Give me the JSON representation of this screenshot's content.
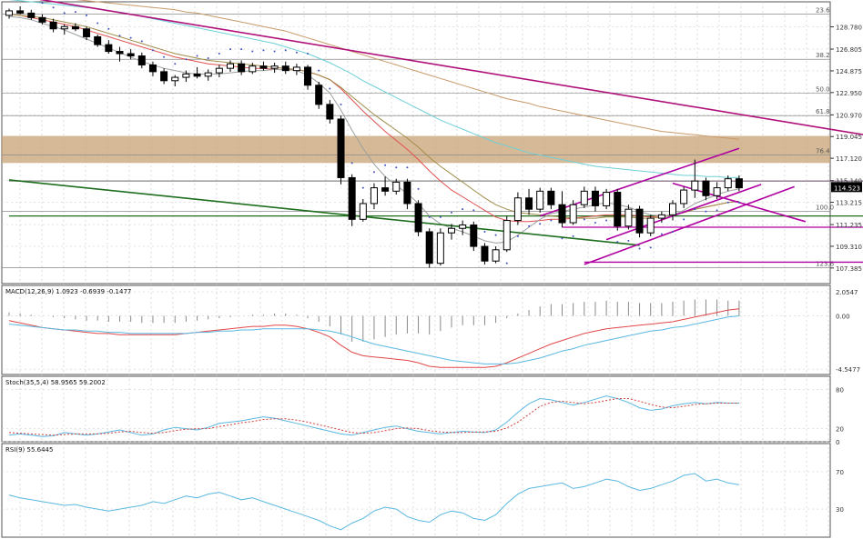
{
  "chart_data": {
    "type": "candlestick",
    "price": {
      "ylim": [
        106.0,
        131.0
      ],
      "ticks": [
        "128.780",
        "126.805",
        "124.875",
        "122.950",
        "120.970",
        "119.045",
        "117.120",
        "115.140",
        "113.215",
        "111.235",
        "109.310",
        "107.385"
      ],
      "last_price_label": "114.523",
      "last_price": 114.523,
      "fib_levels": [
        {
          "label": "23.6",
          "value": 129.9
        },
        {
          "label": "38.2",
          "value": 125.9
        },
        {
          "label": "50.0",
          "value": 122.9
        },
        {
          "label": "61.8",
          "value": 120.9
        },
        {
          "label": "76.4",
          "value": 117.4
        },
        {
          "label": "100.0",
          "value": 112.4
        },
        {
          "label": "123.6",
          "value": 107.4
        }
      ],
      "resistance_zone": [
        116.7,
        119.1
      ],
      "horizontal_lines": [
        {
          "value": 115.1,
          "color": "#b000a0",
          "from": 58,
          "to": 104
        },
        {
          "value": 111.0,
          "color": "#b000a0",
          "from": 50,
          "to": 104
        },
        {
          "value": 107.9,
          "color": "#b000a0",
          "from": 52,
          "to": 110
        },
        {
          "value": 115.1,
          "color": "#888888",
          "from": 0,
          "to": 110
        },
        {
          "value": 112.0,
          "color": "#1e6e1e",
          "from": 0,
          "to": 104
        }
      ],
      "candles": [
        [
          129.8,
          130.4,
          129.5,
          130.2
        ],
        [
          130.2,
          130.6,
          129.9,
          130.0
        ],
        [
          130.0,
          130.3,
          129.4,
          129.6
        ],
        [
          129.6,
          129.9,
          129.0,
          129.2
        ],
        [
          129.2,
          129.5,
          128.3,
          128.6
        ],
        [
          128.6,
          129.0,
          128.1,
          128.8
        ],
        [
          128.8,
          129.1,
          128.4,
          128.6
        ],
        [
          128.6,
          128.8,
          127.6,
          127.9
        ],
        [
          127.9,
          128.1,
          127.0,
          127.2
        ],
        [
          127.2,
          127.6,
          126.4,
          126.6
        ],
        [
          126.6,
          127.0,
          125.7,
          126.4
        ],
        [
          126.4,
          126.8,
          125.9,
          126.2
        ],
        [
          126.2,
          126.5,
          125.1,
          125.4
        ],
        [
          125.4,
          125.7,
          124.4,
          124.8
        ],
        [
          124.8,
          125.1,
          123.7,
          124.0
        ],
        [
          124.0,
          124.5,
          123.5,
          124.3
        ],
        [
          124.3,
          124.9,
          123.9,
          124.6
        ],
        [
          124.6,
          125.2,
          124.2,
          124.4
        ],
        [
          124.4,
          125.0,
          124.0,
          124.7
        ],
        [
          124.7,
          125.4,
          124.3,
          125.1
        ],
        [
          125.1,
          125.8,
          124.8,
          125.5
        ],
        [
          125.5,
          125.8,
          124.5,
          124.8
        ],
        [
          124.8,
          125.6,
          124.6,
          125.3
        ],
        [
          125.3,
          125.7,
          124.9,
          125.1
        ],
        [
          125.1,
          125.6,
          124.7,
          125.3
        ],
        [
          125.3,
          125.7,
          124.6,
          124.9
        ],
        [
          124.9,
          125.5,
          124.5,
          125.2
        ],
        [
          125.2,
          125.4,
          123.2,
          123.6
        ],
        [
          123.6,
          123.9,
          121.5,
          121.9
        ],
        [
          121.9,
          122.3,
          120.2,
          120.6
        ],
        [
          120.6,
          120.9,
          114.8,
          115.4
        ],
        [
          115.4,
          115.7,
          111.1,
          111.7
        ],
        [
          111.7,
          113.5,
          111.5,
          113.1
        ],
        [
          113.1,
          114.9,
          112.6,
          114.5
        ],
        [
          114.5,
          115.5,
          113.8,
          114.2
        ],
        [
          114.2,
          115.3,
          113.9,
          115.0
        ],
        [
          115.0,
          115.3,
          112.6,
          113.1
        ],
        [
          113.1,
          113.4,
          110.2,
          110.6
        ],
        [
          110.6,
          110.9,
          107.4,
          107.8
        ],
        [
          107.8,
          110.9,
          107.6,
          110.5
        ],
        [
          110.5,
          111.3,
          109.9,
          110.9
        ],
        [
          110.9,
          111.6,
          110.3,
          111.2
        ],
        [
          111.2,
          111.5,
          108.9,
          109.3
        ],
        [
          109.3,
          109.6,
          107.7,
          108.0
        ],
        [
          108.0,
          109.3,
          107.8,
          109.0
        ],
        [
          109.0,
          112.0,
          108.8,
          111.6
        ],
        [
          111.6,
          114.1,
          111.2,
          113.6
        ],
        [
          113.6,
          114.4,
          112.1,
          112.6
        ],
        [
          112.6,
          114.5,
          112.3,
          114.2
        ],
        [
          114.2,
          114.5,
          112.6,
          113.0
        ],
        [
          113.0,
          114.2,
          111.0,
          111.4
        ],
        [
          111.4,
          113.4,
          111.2,
          113.0
        ],
        [
          113.0,
          114.6,
          112.7,
          114.2
        ],
        [
          114.2,
          114.6,
          112.4,
          112.9
        ],
        [
          112.9,
          114.4,
          112.6,
          114.1
        ],
        [
          114.1,
          114.4,
          110.7,
          111.1
        ],
        [
          111.1,
          113.0,
          110.8,
          112.6
        ],
        [
          112.6,
          112.9,
          110.1,
          110.5
        ],
        [
          110.5,
          112.1,
          110.2,
          111.8
        ],
        [
          111.8,
          112.4,
          111.4,
          112.1
        ],
        [
          112.1,
          113.4,
          111.6,
          113.1
        ],
        [
          113.1,
          114.6,
          112.7,
          114.3
        ],
        [
          114.3,
          117.0,
          113.6,
          115.1
        ],
        [
          115.1,
          115.4,
          113.4,
          113.8
        ],
        [
          113.8,
          115.0,
          113.5,
          114.5
        ],
        [
          114.5,
          115.6,
          114.2,
          115.3
        ],
        [
          115.3,
          115.6,
          114.2,
          114.5
        ]
      ],
      "sma_fast": [
        129.7,
        129.6,
        129.4,
        129.1,
        128.8,
        128.5,
        128.1,
        127.7,
        127.3,
        126.9,
        126.5,
        126.1,
        125.7,
        125.4,
        125.1,
        124.9,
        124.7,
        124.6,
        124.6,
        124.6,
        124.7,
        124.8,
        124.9,
        124.9,
        125.0,
        125.0,
        124.9,
        124.5,
        123.8,
        122.9,
        121.4,
        119.6,
        118.0,
        116.6,
        115.5,
        114.7,
        114.0,
        113.1,
        112.0,
        111.3,
        110.9,
        110.6,
        110.2,
        109.8,
        109.6,
        109.7,
        110.3,
        111.0,
        111.7,
        112.2,
        112.4,
        112.6,
        112.8,
        113.0,
        113.2,
        113.0,
        112.8,
        112.4,
        112.1,
        112.0,
        112.1,
        112.5,
        113.1,
        113.5,
        113.9,
        114.2,
        114.4
      ],
      "sma_mid": [
        129.9,
        129.8,
        129.7,
        129.6,
        129.4,
        129.2,
        129.0,
        128.8,
        128.5,
        128.2,
        127.9,
        127.6,
        127.3,
        127.0,
        126.7,
        126.4,
        126.2,
        126.0,
        125.8,
        125.7,
        125.6,
        125.5,
        125.4,
        125.3,
        125.2,
        125.1,
        125.0,
        124.8,
        124.5,
        124.1,
        123.4,
        122.6,
        121.8,
        121.0,
        120.3,
        119.6,
        118.9,
        118.1,
        117.2,
        116.4,
        115.7,
        115.0,
        114.3,
        113.6,
        113.0,
        112.6,
        112.3,
        112.2,
        112.1,
        112.0,
        111.9,
        111.8,
        111.8,
        111.8,
        111.9,
        111.9,
        111.9,
        111.8,
        111.8,
        111.9,
        112.1,
        112.3,
        112.6,
        112.8,
        113.0,
        113.2,
        113.3
      ],
      "sma_cyan": [
        131.2,
        131.1,
        131.0,
        130.9,
        130.8,
        130.7,
        130.6,
        130.5,
        130.4,
        130.2,
        130.1,
        129.9,
        129.7,
        129.5,
        129.3,
        129.1,
        128.9,
        128.7,
        128.5,
        128.3,
        128.1,
        127.9,
        127.7,
        127.5,
        127.3,
        127.0,
        126.7,
        126.4,
        126.0,
        125.6,
        125.1,
        124.6,
        124.0,
        123.5,
        123.0,
        122.5,
        122.0,
        121.5,
        121.0,
        120.5,
        120.1,
        119.7,
        119.3,
        118.9,
        118.5,
        118.2,
        117.9,
        117.6,
        117.4,
        117.2,
        117.0,
        116.8,
        116.6,
        116.4,
        116.3,
        116.2,
        116.1,
        116.0,
        115.9,
        115.8,
        115.7,
        115.6,
        115.6,
        115.5,
        115.5,
        115.4,
        115.4
      ],
      "sma_tan": [
        131.6,
        131.5,
        131.5,
        131.4,
        131.4,
        131.3,
        131.2,
        131.1,
        131.0,
        130.9,
        130.8,
        130.7,
        130.6,
        130.5,
        130.4,
        130.3,
        130.1,
        130.0,
        129.8,
        129.6,
        129.4,
        129.2,
        129.0,
        128.8,
        128.6,
        128.4,
        128.1,
        127.8,
        127.5,
        127.2,
        126.9,
        126.6,
        126.3,
        126.0,
        125.7,
        125.4,
        125.1,
        124.8,
        124.5,
        124.2,
        123.9,
        123.6,
        123.3,
        123.0,
        122.7,
        122.4,
        122.2,
        122.0,
        121.7,
        121.5,
        121.3,
        121.1,
        120.9,
        120.7,
        120.5,
        120.3,
        120.1,
        119.9,
        119.7,
        119.5,
        119.4,
        119.3,
        119.2,
        119.1,
        119.0,
        118.9,
        118.8
      ],
      "sma_red": [
        129.9,
        129.8,
        129.6,
        129.4,
        129.2,
        129.0,
        128.8,
        128.5,
        128.2,
        127.9,
        127.6,
        127.3,
        127.0,
        126.7,
        126.4,
        126.1,
        125.9,
        125.7,
        125.5,
        125.4,
        125.3,
        125.2,
        125.1,
        125.1,
        125.0,
        125.0,
        125.0,
        124.8,
        124.5,
        124.1,
        123.3,
        122.3,
        121.3,
        120.4,
        119.5,
        118.7,
        117.9,
        117.0,
        116.0,
        115.1,
        114.3,
        113.7,
        113.1,
        112.5,
        111.9,
        111.6,
        111.5,
        111.5,
        111.6,
        111.7,
        111.7,
        111.8,
        111.9,
        112.0,
        112.1,
        112.1,
        112.1,
        112.0,
        111.9,
        112.0,
        112.1,
        112.3,
        112.6,
        112.8,
        113.0,
        113.2,
        113.3
      ],
      "trendlines": [
        {
          "color": "#b0107a",
          "p1": [
            1,
            131.5
          ],
          "p2": [
            104,
            114.9
          ]
        },
        {
          "color": "#1e6e1e",
          "p1": [
            0,
            115.2
          ],
          "p2": [
            57,
            109.4
          ]
        },
        {
          "color": "#b000a0",
          "p1": [
            48,
            112.0
          ],
          "p2": [
            66,
            118.0
          ]
        },
        {
          "color": "#b000a0",
          "p1": [
            52,
            107.7
          ],
          "p2": [
            71,
            114.6
          ]
        },
        {
          "color": "#b000a0",
          "p1": [
            54,
            109.9
          ],
          "p2": [
            68,
            114.8
          ]
        },
        {
          "color": "#b000a0",
          "p1": [
            60,
            114.9
          ],
          "p2": [
            72,
            111.5
          ]
        }
      ]
    },
    "macd": {
      "label": "MACD(12,26,9) 1.0923 -0.6939 -0.1477",
      "ticks": [
        "2.0547",
        "0.00",
        "-4.5477"
      ],
      "ylim": [
        -5.0,
        2.6
      ],
      "hist": [
        0.3,
        0.2,
        0.1,
        0.0,
        -0.1,
        -0.2,
        -0.3,
        -0.4,
        -0.4,
        -0.5,
        -0.5,
        -0.5,
        -0.6,
        -0.6,
        -0.6,
        -0.6,
        -0.5,
        -0.4,
        -0.3,
        -0.2,
        -0.1,
        0.0,
        0.1,
        0.1,
        0.2,
        0.2,
        0.1,
        -0.2,
        -0.5,
        -0.9,
        -1.6,
        -2.2,
        -2.2,
        -2.0,
        -1.8,
        -1.6,
        -1.5,
        -1.5,
        -1.6,
        -1.3,
        -1.0,
        -0.8,
        -0.8,
        -0.8,
        -0.6,
        -0.2,
        0.2,
        0.5,
        0.8,
        1.0,
        1.0,
        1.1,
        1.2,
        1.2,
        1.3,
        1.2,
        1.2,
        1.1,
        1.1,
        1.1,
        1.2,
        1.3,
        1.4,
        1.4,
        1.4,
        1.3,
        1.3
      ],
      "macd": [
        -0.4,
        -0.6,
        -0.8,
        -1.0,
        -1.1,
        -1.2,
        -1.3,
        -1.4,
        -1.5,
        -1.5,
        -1.6,
        -1.6,
        -1.6,
        -1.6,
        -1.6,
        -1.6,
        -1.5,
        -1.4,
        -1.3,
        -1.2,
        -1.1,
        -1.0,
        -0.9,
        -0.9,
        -0.8,
        -0.8,
        -0.9,
        -1.1,
        -1.4,
        -1.8,
        -2.5,
        -3.1,
        -3.4,
        -3.5,
        -3.6,
        -3.7,
        -3.8,
        -4.0,
        -4.3,
        -4.4,
        -4.4,
        -4.4,
        -4.4,
        -4.4,
        -4.3,
        -4.0,
        -3.6,
        -3.2,
        -2.8,
        -2.4,
        -2.1,
        -1.8,
        -1.5,
        -1.3,
        -1.1,
        -1.0,
        -0.9,
        -0.8,
        -0.7,
        -0.6,
        -0.5,
        -0.3,
        -0.1,
        0.1,
        0.3,
        0.5,
        0.6
      ],
      "signal": [
        -0.7,
        -0.8,
        -0.9,
        -1.0,
        -1.1,
        -1.2,
        -1.2,
        -1.3,
        -1.3,
        -1.4,
        -1.4,
        -1.5,
        -1.5,
        -1.5,
        -1.5,
        -1.5,
        -1.5,
        -1.4,
        -1.4,
        -1.3,
        -1.3,
        -1.2,
        -1.2,
        -1.1,
        -1.1,
        -1.1,
        -1.1,
        -1.1,
        -1.2,
        -1.3,
        -1.5,
        -1.8,
        -2.1,
        -2.4,
        -2.6,
        -2.8,
        -3.0,
        -3.2,
        -3.4,
        -3.6,
        -3.8,
        -3.9,
        -4.0,
        -4.1,
        -4.1,
        -4.1,
        -4.0,
        -3.8,
        -3.6,
        -3.3,
        -3.0,
        -2.8,
        -2.5,
        -2.3,
        -2.1,
        -1.9,
        -1.7,
        -1.5,
        -1.3,
        -1.2,
        -1.0,
        -0.9,
        -0.7,
        -0.5,
        -0.3,
        -0.1,
        0.0
      ]
    },
    "stoch": {
      "label": "Stoch(35,5,4) 58.9565 59.2002",
      "ticks": [
        "80",
        "20",
        "0"
      ],
      "ylim": [
        0,
        100
      ],
      "k": [
        10,
        12,
        10,
        8,
        9,
        14,
        12,
        10,
        12,
        15,
        18,
        14,
        10,
        12,
        18,
        22,
        20,
        18,
        22,
        28,
        30,
        32,
        35,
        38,
        36,
        32,
        28,
        24,
        20,
        16,
        12,
        10,
        14,
        18,
        22,
        24,
        20,
        16,
        14,
        12,
        14,
        16,
        15,
        14,
        18,
        30,
        45,
        58,
        66,
        64,
        60,
        56,
        60,
        65,
        70,
        66,
        60,
        52,
        48,
        50,
        55,
        58,
        60,
        58,
        60,
        59,
        59
      ],
      "d": [
        14,
        13,
        12,
        11,
        10,
        11,
        12,
        12,
        12,
        13,
        15,
        16,
        14,
        13,
        14,
        17,
        19,
        20,
        20,
        23,
        26,
        29,
        31,
        34,
        35,
        35,
        33,
        30,
        26,
        22,
        18,
        14,
        13,
        14,
        17,
        20,
        21,
        20,
        17,
        15,
        14,
        14,
        15,
        15,
        16,
        21,
        30,
        42,
        54,
        60,
        62,
        60,
        58,
        60,
        63,
        66,
        66,
        62,
        57,
        53,
        52,
        54,
        57,
        58,
        59,
        59,
        59
      ]
    },
    "rsi": {
      "label": "RSI(9) 55.6445",
      "ticks": [
        "70",
        "30"
      ],
      "ylim": [
        0,
        100
      ],
      "values": [
        45,
        42,
        40,
        38,
        36,
        34,
        35,
        32,
        30,
        28,
        30,
        32,
        34,
        38,
        36,
        40,
        44,
        42,
        46,
        48,
        44,
        40,
        42,
        38,
        34,
        30,
        26,
        22,
        18,
        12,
        8,
        15,
        20,
        28,
        32,
        30,
        22,
        18,
        16,
        24,
        28,
        26,
        20,
        18,
        24,
        36,
        46,
        52,
        54,
        56,
        58,
        52,
        54,
        58,
        62,
        60,
        54,
        50,
        52,
        56,
        60,
        66,
        68,
        60,
        62,
        58,
        56
      ]
    }
  }
}
